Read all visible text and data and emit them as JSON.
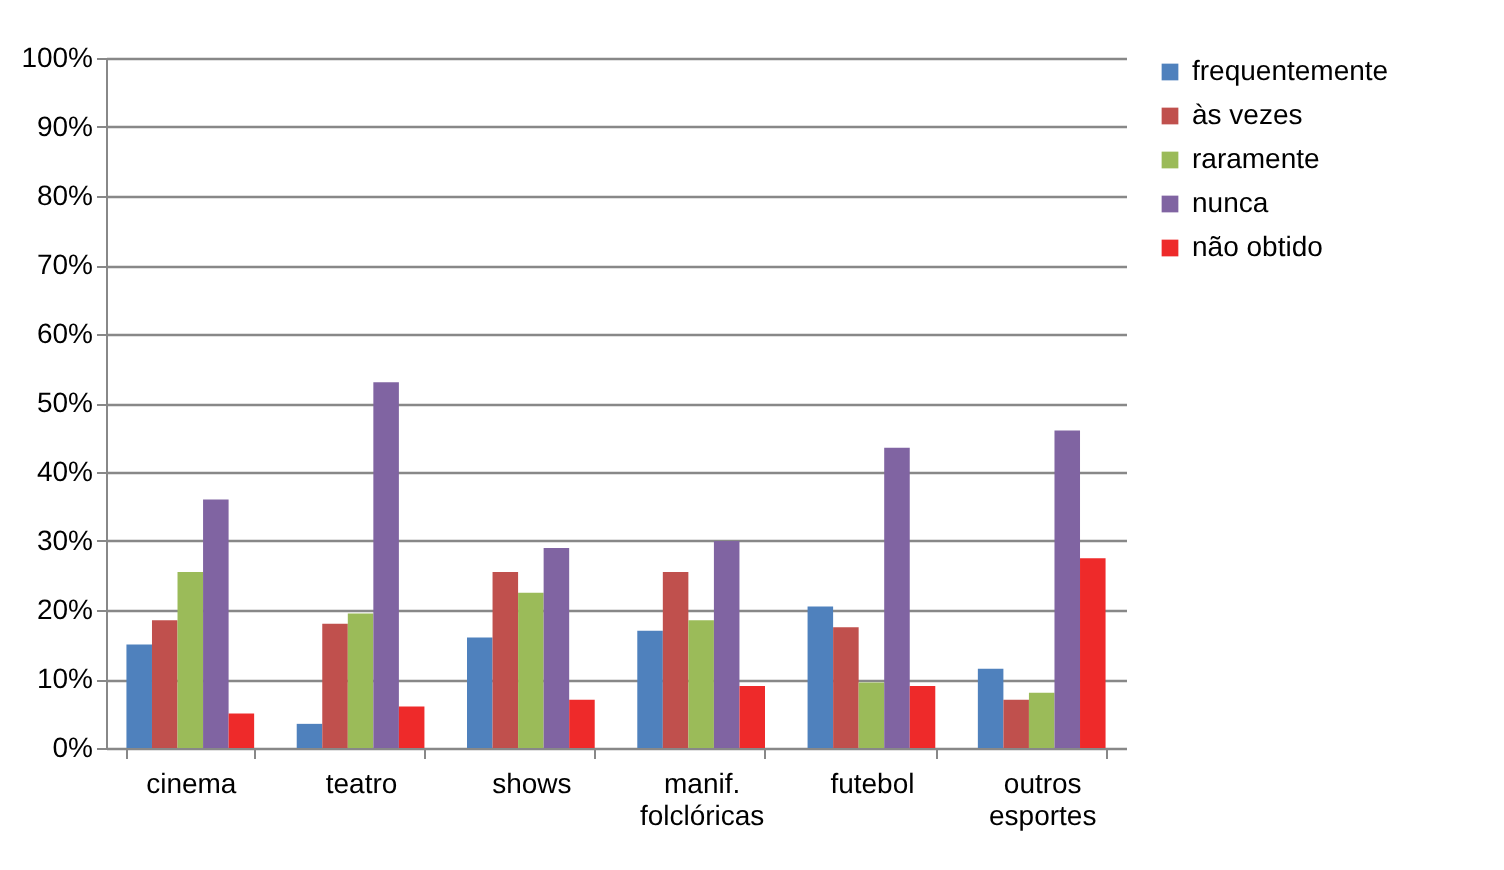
{
  "chart_data": {
    "type": "bar",
    "categories": [
      "cinema",
      "teatro",
      "shows",
      "manif. folclóricas",
      "futebol",
      "outros esportes"
    ],
    "series": [
      {
        "name": "frequentemente",
        "color": "#4f81bd",
        "values": [
          15,
          3.5,
          16,
          17,
          20.5,
          11.5
        ]
      },
      {
        "name": "às vezes",
        "color": "#c0504d",
        "values": [
          18.5,
          18,
          25.5,
          25.5,
          17.5,
          7
        ]
      },
      {
        "name": "raramente",
        "color": "#9bbb59",
        "values": [
          25.5,
          19.5,
          22.5,
          18.5,
          9.5,
          8
        ]
      },
      {
        "name": "nunca",
        "color": "#8064a2",
        "values": [
          36,
          53,
          29,
          30,
          43.5,
          46
        ]
      },
      {
        "name": "não obtido",
        "color": "#ee2a2a",
        "values": [
          5,
          6,
          7,
          9,
          9,
          27.5
        ]
      }
    ],
    "ylim": [
      0,
      100
    ],
    "yticks": [
      {
        "value": 0,
        "label": "0%"
      },
      {
        "value": 10,
        "label": "10%"
      },
      {
        "value": 20,
        "label": "20%"
      },
      {
        "value": 30,
        "label": "30%"
      },
      {
        "value": 40,
        "label": "40%"
      },
      {
        "value": 50,
        "label": "50%"
      },
      {
        "value": 60,
        "label": "60%"
      },
      {
        "value": 70,
        "label": "70%"
      },
      {
        "value": 80,
        "label": "80%"
      },
      {
        "value": 90,
        "label": "90%"
      },
      {
        "value": 100,
        "label": "100%"
      }
    ],
    "grid": "y",
    "legend": "right"
  }
}
